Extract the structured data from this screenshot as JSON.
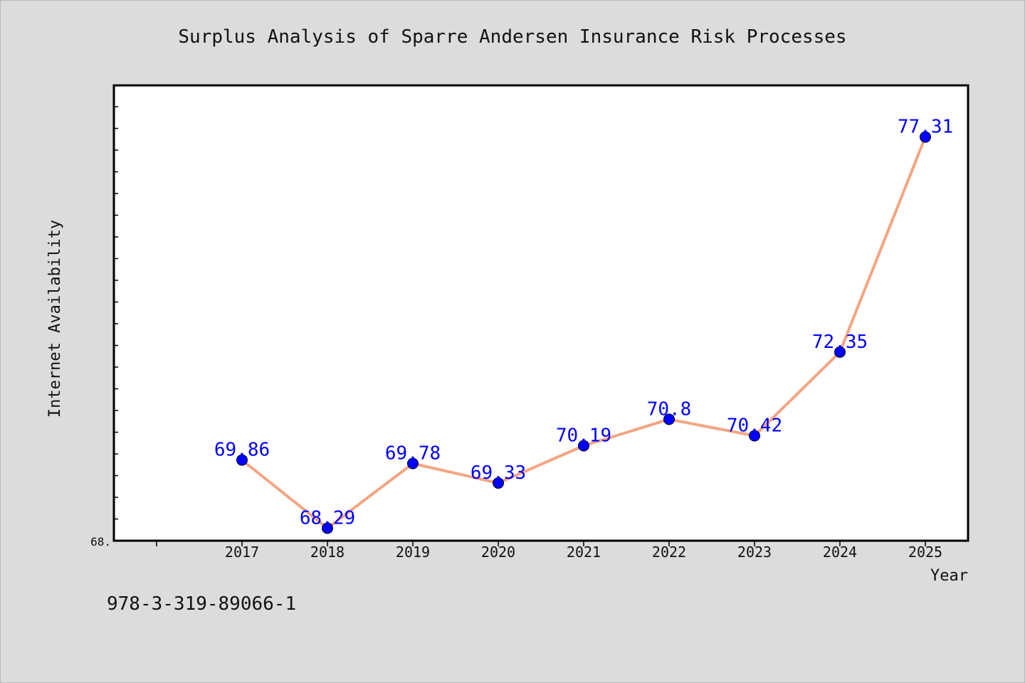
{
  "chart_data": {
    "type": "line",
    "title": "Surplus Analysis of Sparre Andersen Insurance Risk Processes",
    "xlabel": "Year",
    "ylabel": "Internet Availability",
    "categories": [
      "2017",
      "2018",
      "2019",
      "2020",
      "2021",
      "2022",
      "2023",
      "2024",
      "2025"
    ],
    "series": [
      {
        "values": [
          69.86,
          68.29,
          69.78,
          69.33,
          70.19,
          70.8,
          70.42,
          72.35,
          77.31
        ],
        "data_labels": [
          "69.86",
          "68.29",
          "69.78",
          "69.33",
          "70.19",
          "70.8",
          "70.42",
          "72.35",
          "77.31"
        ]
      }
    ],
    "ylim": [
      68.0,
      78.5
    ],
    "y_tick_label": "68.",
    "grid": false,
    "line_color": "#f4a582",
    "marker_color": "#0000ff",
    "label_color": "#0000ff"
  },
  "footer": {
    "isbn": "978-3-319-89066-1"
  }
}
